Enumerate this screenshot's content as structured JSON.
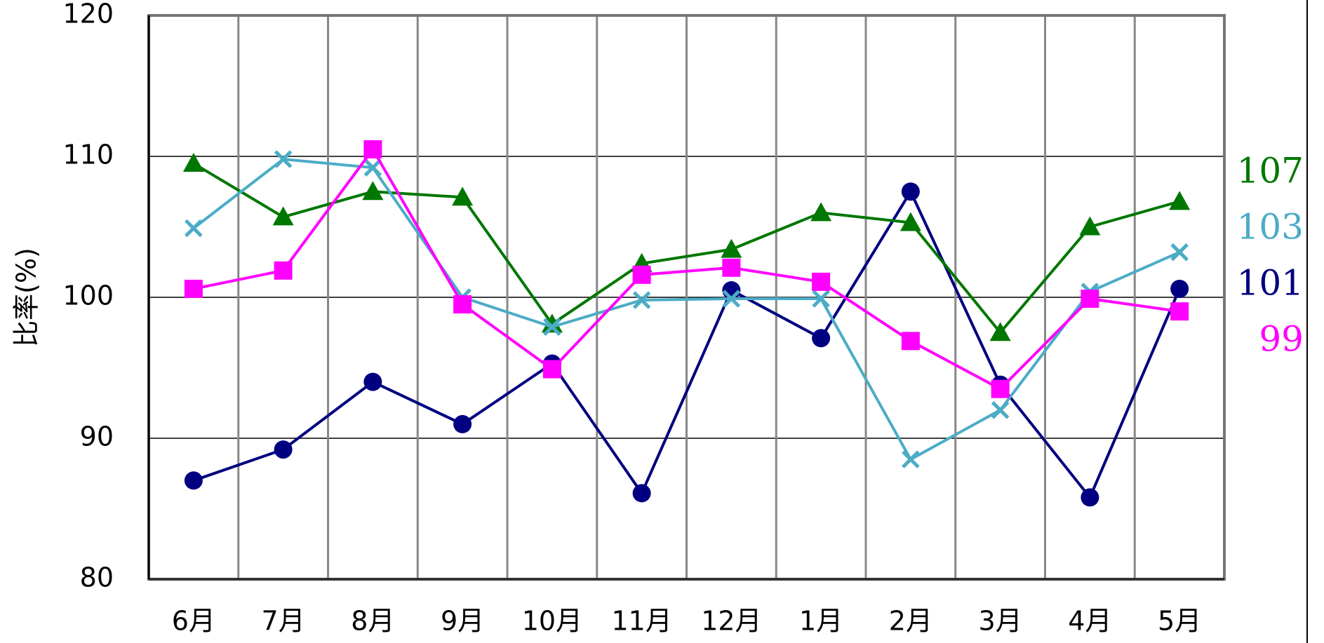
{
  "chart_data": {
    "type": "line",
    "y_label": "比率(%)",
    "categories": [
      "6月",
      "7月",
      "8月",
      "9月",
      "10月",
      "11月",
      "12月",
      "1月",
      "2月",
      "3月",
      "4月",
      "5月"
    ],
    "ylim": [
      80,
      120
    ],
    "yticks": [
      80,
      90,
      100,
      110,
      120
    ],
    "grid": true,
    "series": [
      {
        "color": "#000080",
        "marker": "circle",
        "values": [
          87.0,
          89.2,
          94.0,
          91.0,
          95.3,
          86.1,
          100.5,
          97.1,
          107.5,
          93.8,
          85.8,
          100.6
        ],
        "value_labels": [
          null,
          null,
          null,
          null,
          null,
          null,
          null,
          null,
          null,
          null,
          null,
          "101"
        ]
      },
      {
        "color": "#007700",
        "marker": "triangle",
        "values": [
          109.5,
          105.7,
          107.5,
          107.1,
          98.1,
          102.4,
          103.4,
          106.0,
          105.3,
          97.5,
          105.0,
          106.8
        ],
        "value_labels": [
          null,
          null,
          null,
          null,
          null,
          null,
          null,
          null,
          null,
          null,
          null,
          "107"
        ]
      },
      {
        "color": "#4bacc6",
        "marker": "x",
        "values": [
          104.9,
          109.8,
          109.2,
          100.0,
          97.9,
          99.8,
          99.9,
          99.9,
          88.5,
          92.0,
          100.4,
          103.2
        ],
        "value_labels": [
          null,
          null,
          null,
          null,
          null,
          null,
          null,
          null,
          null,
          null,
          null,
          "103"
        ]
      },
      {
        "color": "#ff00ff",
        "marker": "square",
        "values": [
          100.6,
          101.9,
          110.5,
          99.5,
          94.9,
          101.6,
          102.1,
          101.1,
          96.9,
          93.5,
          99.9,
          99.0
        ],
        "value_labels": [
          null,
          null,
          null,
          null,
          null,
          null,
          null,
          null,
          null,
          null,
          null,
          "99"
        ]
      }
    ]
  }
}
